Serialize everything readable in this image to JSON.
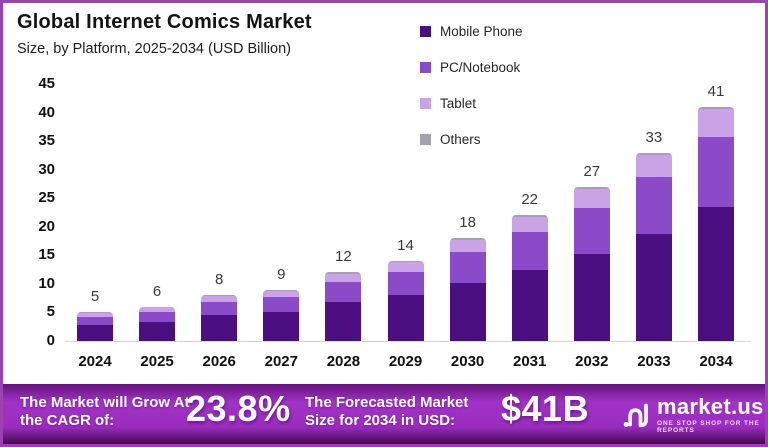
{
  "header": {
    "title": "Global Internet Comics Market",
    "subtitle": "Size, by Platform, 2025-2034 (USD Billion)"
  },
  "chart_data": {
    "type": "bar",
    "stacked": true,
    "title": "Global Internet Comics Market Size, by Platform, 2025-2034 (USD Billion)",
    "categories": [
      "2024",
      "2025",
      "2026",
      "2027",
      "2028",
      "2029",
      "2030",
      "2031",
      "2032",
      "2033",
      "2034"
    ],
    "totals": [
      5,
      6,
      8,
      9,
      12,
      14,
      18,
      22,
      27,
      33,
      41
    ],
    "series": [
      {
        "name": "Mobile Phone",
        "color": "#4B0F82",
        "values": [
          2.8,
          3.4,
          4.5,
          5.1,
          6.8,
          8.0,
          10.2,
          12.5,
          15.3,
          18.8,
          23.5
        ]
      },
      {
        "name": "PC/Notebook",
        "color": "#8B4AC8",
        "values": [
          1.4,
          1.7,
          2.3,
          2.6,
          3.5,
          4.1,
          5.3,
          6.5,
          8.0,
          9.9,
          12.2
        ]
      },
      {
        "name": "Tablet",
        "color": "#C9A3E6",
        "values": [
          0.7,
          0.8,
          1.0,
          1.1,
          1.5,
          1.7,
          2.2,
          2.7,
          3.4,
          3.9,
          4.9
        ]
      },
      {
        "name": "Others",
        "color": "#A5A1AE",
        "values": [
          0.1,
          0.1,
          0.2,
          0.2,
          0.2,
          0.2,
          0.3,
          0.3,
          0.3,
          0.4,
          0.4
        ]
      }
    ],
    "xlabel": "",
    "ylabel": "",
    "ylim": [
      0,
      45
    ],
    "yticks": [
      0,
      5,
      10,
      15,
      20,
      25,
      30,
      35,
      40,
      45
    ],
    "grid": false,
    "legend_position": "top-right",
    "value_labels": "totals shown above each bar"
  },
  "banner": {
    "cagr_label": "The Market will Grow At the CAGR of:",
    "cagr_value": "23.8%",
    "forecast_label": "The Forecasted Market Size for 2034 in USD:",
    "forecast_value": "$41B",
    "logo_text": "market.us",
    "logo_tagline": "ONE STOP SHOP FOR THE REPORTS"
  },
  "colors": {
    "border": "#9C42B0",
    "banner_purple": "#9A2CBE",
    "axis_line": "#D8D8D8",
    "text": "#141414"
  }
}
